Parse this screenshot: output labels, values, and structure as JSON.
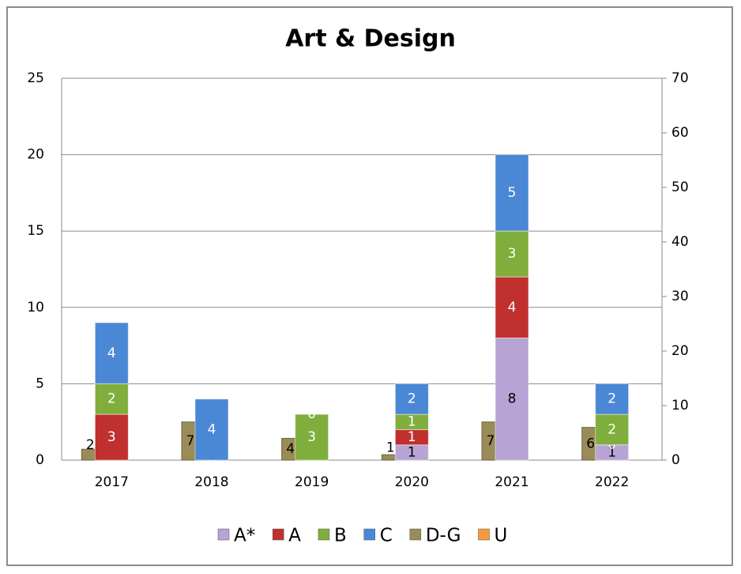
{
  "chart_data": {
    "type": "bar",
    "stacked": true,
    "title": "Art & Design",
    "categories": [
      "2017",
      "2018",
      "2019",
      "2020",
      "2021",
      "2022"
    ],
    "ylim": [
      0,
      25
    ],
    "yticks": [
      0,
      5,
      10,
      15,
      20,
      25
    ],
    "y2lim": [
      0,
      70
    ],
    "y2ticks": [
      0,
      10,
      20,
      30,
      40,
      50,
      60,
      70
    ],
    "grid": true,
    "legend": "bottom",
    "series": [
      {
        "name": "A*",
        "color": "#b7a4d4",
        "values": [
          null,
          null,
          null,
          1,
          8,
          1
        ]
      },
      {
        "name": "A",
        "color": "#c0302e",
        "values": [
          3,
          0,
          0,
          1,
          4,
          0
        ]
      },
      {
        "name": "B",
        "color": "#7fae3c",
        "values": [
          2,
          null,
          3,
          1,
          3,
          2
        ]
      },
      {
        "name": "C",
        "color": "#4a88d6",
        "values": [
          4,
          4,
          0,
          2,
          5,
          2
        ]
      },
      {
        "name": "D-G",
        "color": "#9a8c58",
        "axis": "y2",
        "values": [
          2,
          7,
          4,
          1,
          7,
          6
        ]
      },
      {
        "name": "U",
        "color": "#f59a3e",
        "values": [
          null,
          null,
          null,
          null,
          null,
          null
        ]
      }
    ]
  }
}
